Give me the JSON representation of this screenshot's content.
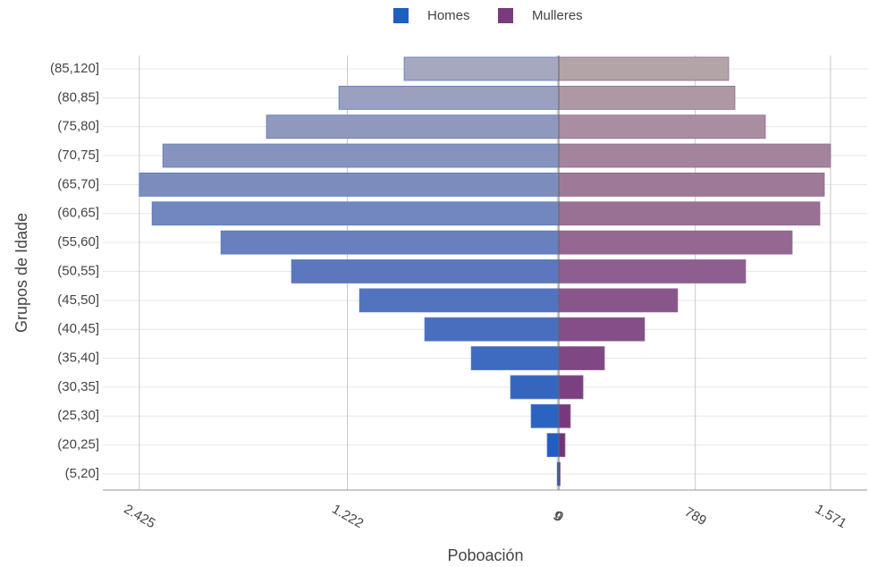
{
  "chart_data": {
    "type": "pyramid",
    "x_label": "Poboación",
    "y_label": "Grupos de Idade",
    "categories": [
      "(5,20]",
      "(20,25]",
      "(25,30]",
      "(30,35]",
      "(35,40]",
      "(40,45]",
      "(45,50]",
      "(50,55]",
      "(55,60]",
      "(60,65]",
      "(65,70]",
      "(70,75]",
      "(75,80]",
      "(80,85]",
      "(85,120]"
    ],
    "series": [
      {
        "name": "Homes",
        "color": "#1f5fbf",
        "colors": [
          "#1a5ac4",
          "#1f5fc3",
          "#2a63c2",
          "#3466c0",
          "#3e6abf",
          "#486ebe",
          "#5273bd",
          "#5c77bd",
          "#6880bd",
          "#7287bd",
          "#7c8dbd",
          "#8693be",
          "#9099bd",
          "#9aa0bd",
          "#a5a8be"
        ],
        "values": [
          -9,
          -67,
          -160,
          -279,
          -506,
          -775,
          -1152,
          -1545,
          -1953,
          -2351,
          -2425,
          -2289,
          -1690,
          -1271,
          -894
        ]
      },
      {
        "name": "Mulleres",
        "color": "#7a3b7d",
        "colors": [
          "#6e2d74",
          "#733378",
          "#77397c",
          "#7b4080",
          "#7f4784",
          "#844e88",
          "#89568b",
          "#8e5f8e",
          "#946891",
          "#997194",
          "#9e7a98",
          "#a3849c",
          "#a88ea0",
          "#ad98a3",
          "#b3a4a8"
        ],
        "values": [
          8,
          36,
          67,
          140,
          264,
          496,
          687,
          1080,
          1349,
          1509,
          1535,
          1571,
          1194,
          1018,
          982
        ]
      }
    ],
    "xlim": [
      -2636,
      1783
    ],
    "xticks": [
      {
        "value": -2425,
        "label": "2.425"
      },
      {
        "value": -1222,
        "label": "1.222"
      },
      {
        "value": -9,
        "label": "9"
      },
      0,
      789,
      {
        "value": 1571,
        "label": "1.571"
      }
    ],
    "grid": true,
    "legend": "top"
  }
}
